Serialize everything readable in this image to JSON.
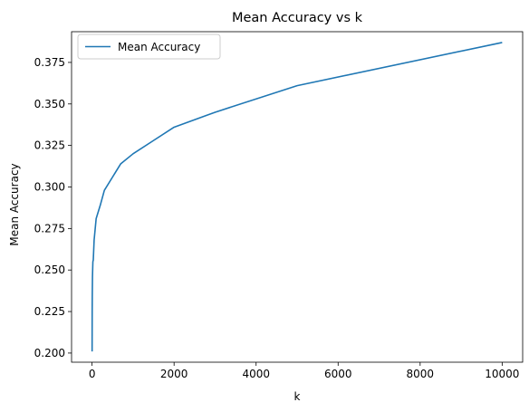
{
  "chart_data": {
    "type": "line",
    "title": "Mean Accuracy vs k",
    "xlabel": "k",
    "ylabel": "Mean Accuracy",
    "xlim": [
      -500,
      10500
    ],
    "ylim": [
      0.1945,
      0.3935
    ],
    "xticks": [
      0,
      2000,
      4000,
      6000,
      8000,
      10000
    ],
    "yticks": [
      0.2,
      0.225,
      0.25,
      0.275,
      0.3,
      0.325,
      0.35,
      0.375
    ],
    "ytick_labels": [
      "0.200",
      "0.225",
      "0.250",
      "0.275",
      "0.300",
      "0.325",
      "0.350",
      "0.375"
    ],
    "grid": false,
    "legend_position": "top-left",
    "series": [
      {
        "name": "Mean Accuracy",
        "color": "#1f77b4",
        "x": [
          1,
          2,
          3,
          5,
          10,
          20,
          30,
          50,
          100,
          200,
          300,
          500,
          700,
          1000,
          1500,
          2000,
          3000,
          5000,
          10000
        ],
        "y": [
          0.201,
          0.215,
          0.225,
          0.234,
          0.246,
          0.255,
          0.256,
          0.268,
          0.281,
          0.289,
          0.298,
          0.306,
          0.314,
          0.32,
          0.328,
          0.336,
          0.345,
          0.361,
          0.387
        ]
      }
    ]
  }
}
